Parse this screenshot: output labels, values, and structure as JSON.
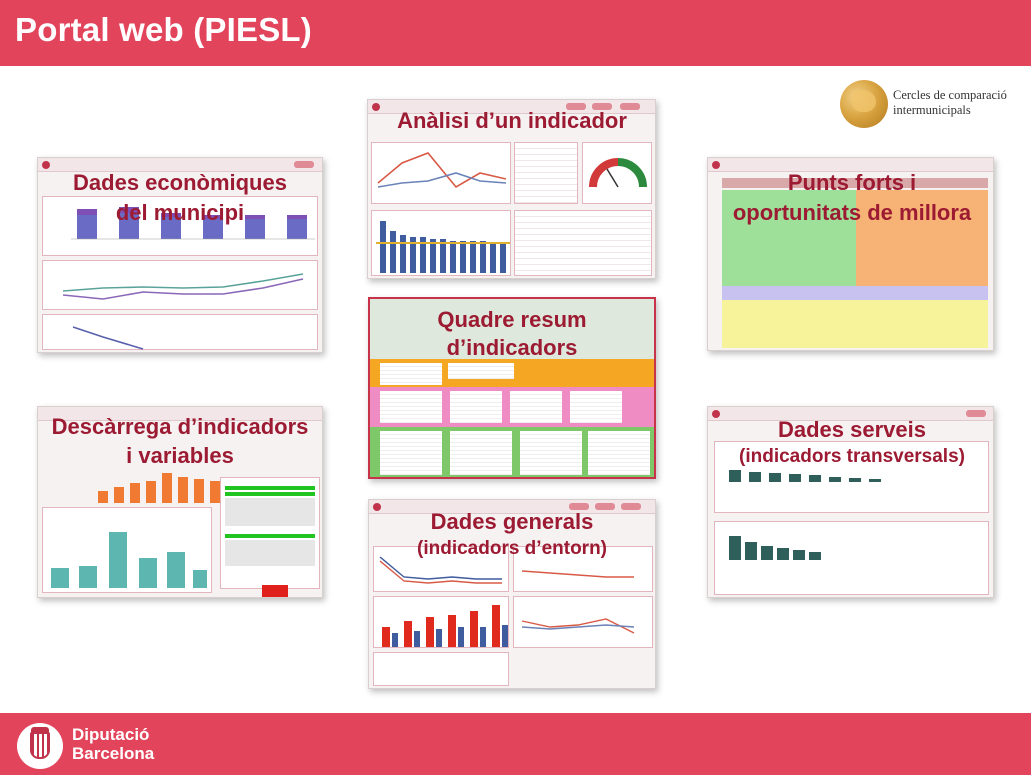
{
  "header": {
    "title": "Portal web (PIESL)"
  },
  "logo_cercles": {
    "line1": "Cercles de comparació",
    "line2": "intermunicipals"
  },
  "footer": {
    "brand_line1": "Diputació",
    "brand_line2": "Barcelona"
  },
  "thumbnails": {
    "economiques": {
      "line1": "Dades econòmiques",
      "line2": "del municipi"
    },
    "analisi": {
      "line1": "Anàlisi d’un indicador"
    },
    "punts": {
      "line1": "Punts forts i",
      "line2": "oportunitats de millora"
    },
    "quadre": {
      "line1": "Quadre resum",
      "line2": "d’indicadors"
    },
    "descarrega": {
      "line1": "Descàrrega d’indicadors",
      "line2": "i variables"
    },
    "serveis": {
      "line1": "Dades serveis",
      "line2": "(indicadors transversals)"
    },
    "generals": {
      "line1": "Dades generals",
      "line2": "(indicadors d’entorn)"
    }
  },
  "colors": {
    "brand_red": "#e2445c",
    "overlay_text": "#9c1b33"
  }
}
